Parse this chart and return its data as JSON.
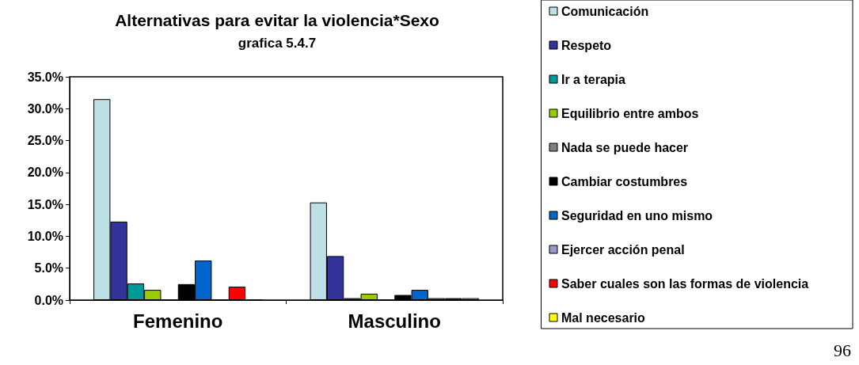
{
  "chart_data": {
    "type": "bar",
    "title": "Alternativas para evitar la violencia*Sexo",
    "subtitle": "grafica 5.4.7",
    "categories": [
      "Femenino",
      "Masculino"
    ],
    "series": [
      {
        "name": "Comunicación",
        "color": "#bde0e4",
        "values": [
          31.5,
          15.3
        ]
      },
      {
        "name": "Respeto",
        "color": "#333399",
        "values": [
          12.3,
          6.9
        ]
      },
      {
        "name": "Ir a terapia",
        "color": "#009999",
        "values": [
          2.6,
          0.3
        ]
      },
      {
        "name": "Equilibrio entre ambos",
        "color": "#99cc00",
        "values": [
          1.6,
          1.0
        ]
      },
      {
        "name": "Nada se puede hacer",
        "color": "#808080",
        "values": [
          0,
          0
        ]
      },
      {
        "name": "Cambiar costumbres",
        "color": "#000000",
        "values": [
          2.5,
          0.8
        ]
      },
      {
        "name": "Seguridad en uno mismo",
        "color": "#0066cc",
        "values": [
          6.2,
          1.6
        ]
      },
      {
        "name": "Ejercer acción penal",
        "color": "#9999cc",
        "values": [
          0,
          0.3
        ]
      },
      {
        "name": "Saber cuales son las formas de violencia",
        "color": "#ff0000",
        "values": [
          2.1,
          0.3
        ]
      },
      {
        "name": "Mal necesario",
        "color": "#ffff00",
        "values": [
          0,
          0.3
        ]
      }
    ],
    "ylim": [
      0,
      35
    ],
    "yticks": [
      {
        "value": 0,
        "label": "0.0%"
      },
      {
        "value": 5,
        "label": "5.0%"
      },
      {
        "value": 10,
        "label": "10.0%"
      },
      {
        "value": 15,
        "label": "15.0%"
      },
      {
        "value": 20,
        "label": "20.0%"
      },
      {
        "value": 25,
        "label": "25.0%"
      },
      {
        "value": 30,
        "label": "30.0%"
      },
      {
        "value": 35,
        "label": "35.0%"
      }
    ],
    "grid": false,
    "legend": "right",
    "annotations": [
      "96"
    ]
  }
}
